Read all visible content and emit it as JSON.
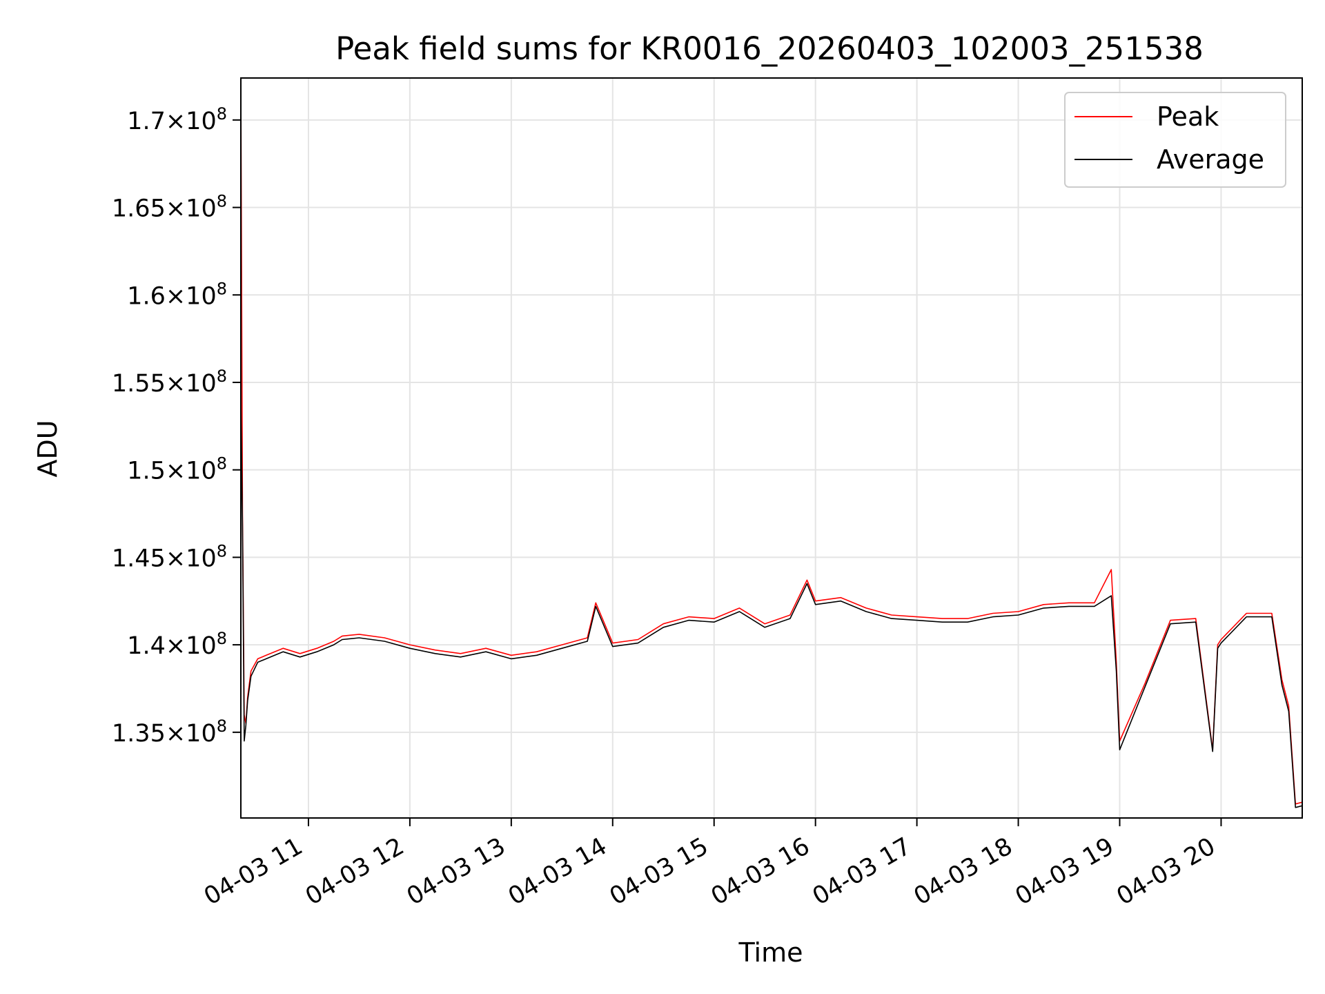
{
  "chart_data": {
    "type": "line",
    "title": "Peak field sums for KR0016_20260403_102003_251538",
    "xlabel": "Time",
    "ylabel": "ADU",
    "x_unit": "hours",
    "xlim": [
      "2026-04-03 10:20",
      "2026-04-03 20:48"
    ],
    "ylim": [
      130100000,
      172400000
    ],
    "x_ticks": [
      "04-03 11",
      "04-03 12",
      "04-03 13",
      "04-03 14",
      "04-03 15",
      "04-03 16",
      "04-03 17",
      "04-03 18",
      "04-03 19",
      "04-03 20"
    ],
    "y_ticks": [
      {
        "value": 135000000,
        "mant": "1.35",
        "exp": "8"
      },
      {
        "value": 140000000,
        "mant": "1.4",
        "exp": "8"
      },
      {
        "value": 145000000,
        "mant": "1.45",
        "exp": "8"
      },
      {
        "value": 150000000,
        "mant": "1.5",
        "exp": "8"
      },
      {
        "value": 155000000,
        "mant": "1.55",
        "exp": "8"
      },
      {
        "value": 160000000,
        "mant": "1.6",
        "exp": "8"
      },
      {
        "value": 165000000,
        "mant": "1.65",
        "exp": "8"
      },
      {
        "value": 170000000,
        "mant": "1.7",
        "exp": "8"
      }
    ],
    "grid": true,
    "legend_position": "top-right",
    "series": [
      {
        "name": "Peak",
        "color": "#ff0000",
        "x": [
          "2026-04-03 10:20",
          "2026-04-03 10:20",
          "2026-04-03 10:21",
          "2026-04-03 10:22",
          "2026-04-03 10:23",
          "2026-04-03 10:24",
          "2026-04-03 10:26",
          "2026-04-03 10:30",
          "2026-04-03 10:35",
          "2026-04-03 10:40",
          "2026-04-03 10:45",
          "2026-04-03 10:55",
          "2026-04-03 11:05",
          "2026-04-03 11:15",
          "2026-04-03 11:20",
          "2026-04-03 11:30",
          "2026-04-03 11:45",
          "2026-04-03 12:00",
          "2026-04-03 12:15",
          "2026-04-03 12:30",
          "2026-04-03 12:45",
          "2026-04-03 13:00",
          "2026-04-03 13:15",
          "2026-04-03 13:30",
          "2026-04-03 13:45",
          "2026-04-03 13:50",
          "2026-04-03 14:00",
          "2026-04-03 14:15",
          "2026-04-03 14:30",
          "2026-04-03 14:45",
          "2026-04-03 15:00",
          "2026-04-03 15:15",
          "2026-04-03 15:30",
          "2026-04-03 15:45",
          "2026-04-03 15:55",
          "2026-04-03 16:00",
          "2026-04-03 16:15",
          "2026-04-03 16:30",
          "2026-04-03 16:45",
          "2026-04-03 17:00",
          "2026-04-03 17:15",
          "2026-04-03 17:30",
          "2026-04-03 17:45",
          "2026-04-03 18:00",
          "2026-04-03 18:15",
          "2026-04-03 18:30",
          "2026-04-03 18:45",
          "2026-04-03 18:55",
          "2026-04-03 18:58",
          "2026-04-03 19:00",
          "2026-04-03 19:15",
          "2026-04-03 19:30",
          "2026-04-03 19:45",
          "2026-04-03 19:55",
          "2026-04-03 19:58",
          "2026-04-03 20:00",
          "2026-04-03 20:15",
          "2026-04-03 20:30",
          "2026-04-03 20:36",
          "2026-04-03 20:40",
          "2026-04-03 20:44",
          "2026-04-03 20:48"
        ],
        "values": [
          146500000,
          172400000,
          147500000,
          136000000,
          135500000,
          137000000,
          138500000,
          139200000,
          139400000,
          139600000,
          139800000,
          139500000,
          139800000,
          140200000,
          140500000,
          140600000,
          140400000,
          140000000,
          139700000,
          139500000,
          139800000,
          139400000,
          139600000,
          140000000,
          140400000,
          142400000,
          140100000,
          140300000,
          141200000,
          141600000,
          141500000,
          142100000,
          141200000,
          141700000,
          143700000,
          142500000,
          142700000,
          142100000,
          141700000,
          141600000,
          141500000,
          141500000,
          141800000,
          141900000,
          142300000,
          142400000,
          142400000,
          144300000,
          139000000,
          134500000,
          137800000,
          141400000,
          141500000,
          134000000,
          140000000,
          140300000,
          141800000,
          141800000,
          138000000,
          136500000,
          130900000,
          131000000
        ]
      },
      {
        "name": "Average",
        "color": "#000000",
        "x": [
          "2026-04-03 10:20",
          "2026-04-03 10:20",
          "2026-04-03 10:21",
          "2026-04-03 10:22",
          "2026-04-03 10:23",
          "2026-04-03 10:24",
          "2026-04-03 10:26",
          "2026-04-03 10:30",
          "2026-04-03 10:35",
          "2026-04-03 10:40",
          "2026-04-03 10:45",
          "2026-04-03 10:55",
          "2026-04-03 11:05",
          "2026-04-03 11:15",
          "2026-04-03 11:20",
          "2026-04-03 11:30",
          "2026-04-03 11:45",
          "2026-04-03 12:00",
          "2026-04-03 12:15",
          "2026-04-03 12:30",
          "2026-04-03 12:45",
          "2026-04-03 13:00",
          "2026-04-03 13:15",
          "2026-04-03 13:30",
          "2026-04-03 13:45",
          "2026-04-03 13:50",
          "2026-04-03 14:00",
          "2026-04-03 14:15",
          "2026-04-03 14:30",
          "2026-04-03 14:45",
          "2026-04-03 15:00",
          "2026-04-03 15:15",
          "2026-04-03 15:30",
          "2026-04-03 15:45",
          "2026-04-03 15:55",
          "2026-04-03 16:00",
          "2026-04-03 16:15",
          "2026-04-03 16:30",
          "2026-04-03 16:45",
          "2026-04-03 17:00",
          "2026-04-03 17:15",
          "2026-04-03 17:30",
          "2026-04-03 17:45",
          "2026-04-03 18:00",
          "2026-04-03 18:15",
          "2026-04-03 18:30",
          "2026-04-03 18:45",
          "2026-04-03 18:55",
          "2026-04-03 18:58",
          "2026-04-03 19:00",
          "2026-04-03 19:15",
          "2026-04-03 19:30",
          "2026-04-03 19:45",
          "2026-04-03 19:55",
          "2026-04-03 19:58",
          "2026-04-03 20:00",
          "2026-04-03 20:15",
          "2026-04-03 20:30",
          "2026-04-03 20:36",
          "2026-04-03 20:40",
          "2026-04-03 20:44",
          "2026-04-03 20:48"
        ],
        "values": [
          146000000,
          154000000,
          146800000,
          134500000,
          135400000,
          136800000,
          138200000,
          139000000,
          139200000,
          139400000,
          139600000,
          139300000,
          139600000,
          140000000,
          140300000,
          140400000,
          140200000,
          139800000,
          139500000,
          139300000,
          139600000,
          139200000,
          139400000,
          139800000,
          140200000,
          142200000,
          139900000,
          140100000,
          141000000,
          141400000,
          141300000,
          141900000,
          141000000,
          141500000,
          143500000,
          142300000,
          142500000,
          141900000,
          141500000,
          141400000,
          141300000,
          141300000,
          141600000,
          141700000,
          142100000,
          142200000,
          142200000,
          142800000,
          138500000,
          134000000,
          137600000,
          141200000,
          141300000,
          133900000,
          139800000,
          140100000,
          141600000,
          141600000,
          137700000,
          136200000,
          130700000,
          130800000
        ]
      }
    ]
  }
}
